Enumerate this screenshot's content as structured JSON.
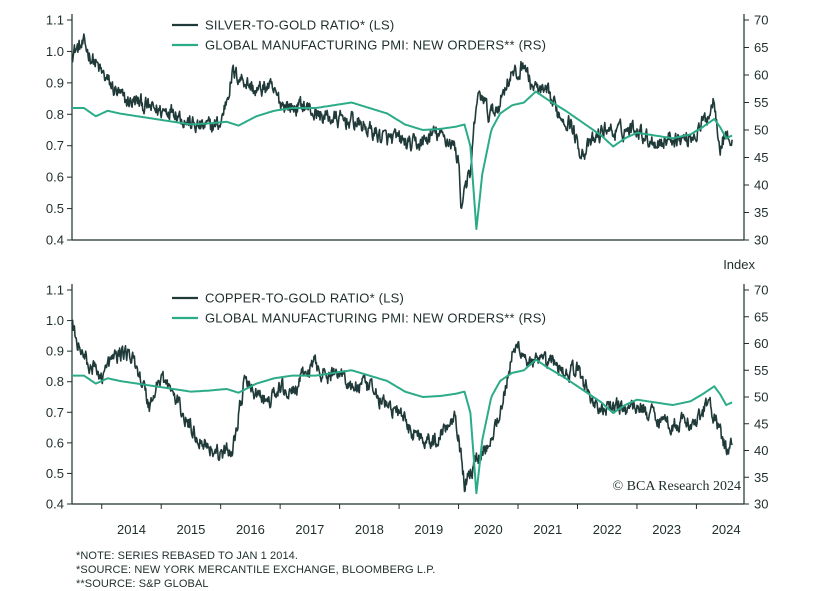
{
  "chart_data": [
    {
      "type": "line",
      "title": "",
      "legend": [
        {
          "name": "SILVER-TO-GOLD RATIO* (LS)",
          "color": "#1f3a39"
        },
        {
          "name": "GLOBAL MANUFACTURING PMI: NEW ORDERS** (RS)",
          "color": "#2bab87"
        }
      ],
      "left_axis": {
        "ylim": [
          0.4,
          1.1
        ],
        "ticks": [
          "1.1",
          "1.0",
          "0.9",
          "0.8",
          "0.7",
          "0.6",
          "0.5",
          "0.4"
        ]
      },
      "right_axis": {
        "ylim": [
          30,
          70
        ],
        "ticks": [
          "70",
          "65",
          "60",
          "55",
          "50",
          "45",
          "40",
          "35",
          "30"
        ],
        "label": "Index"
      },
      "xlim": [
        2013.5,
        2024.8
      ],
      "series": [
        {
          "name": "Silver-to-Gold Ratio",
          "axis": "left",
          "x": [
            2013.5,
            2013.7,
            2013.9,
            2014.0,
            2014.2,
            2014.4,
            2014.6,
            2014.8,
            2015.0,
            2015.2,
            2015.4,
            2015.6,
            2015.8,
            2016.0,
            2016.2,
            2016.4,
            2016.6,
            2016.8,
            2017.0,
            2017.2,
            2017.4,
            2017.6,
            2017.8,
            2018.0,
            2018.2,
            2018.4,
            2018.6,
            2018.8,
            2019.0,
            2019.2,
            2019.4,
            2019.6,
            2019.8,
            2019.9,
            2020.0,
            2020.05,
            2020.1,
            2020.2,
            2020.3,
            2020.4,
            2020.5,
            2020.6,
            2020.7,
            2020.8,
            2020.9,
            2021.0,
            2021.1,
            2021.2,
            2021.3,
            2021.5,
            2021.7,
            2021.9,
            2022.0,
            2022.1,
            2022.3,
            2022.5,
            2022.6,
            2022.8,
            2023.0,
            2023.2,
            2023.4,
            2023.6,
            2023.8,
            2024.0,
            2024.2,
            2024.3,
            2024.4,
            2024.5,
            2024.6
          ],
          "values": [
            1.0,
            1.02,
            0.96,
            0.93,
            0.88,
            0.84,
            0.84,
            0.82,
            0.81,
            0.82,
            0.78,
            0.76,
            0.76,
            0.77,
            0.93,
            0.91,
            0.87,
            0.89,
            0.84,
            0.82,
            0.83,
            0.8,
            0.79,
            0.78,
            0.78,
            0.76,
            0.74,
            0.72,
            0.72,
            0.7,
            0.71,
            0.74,
            0.72,
            0.71,
            0.65,
            0.5,
            0.58,
            0.6,
            0.84,
            0.86,
            0.8,
            0.81,
            0.84,
            0.9,
            0.93,
            0.92,
            0.97,
            0.9,
            0.88,
            0.86,
            0.8,
            0.77,
            0.7,
            0.68,
            0.72,
            0.76,
            0.74,
            0.75,
            0.76,
            0.72,
            0.71,
            0.73,
            0.72,
            0.74,
            0.8,
            0.85,
            0.7,
            0.74,
            0.7
          ]
        },
        {
          "name": "Global Manufacturing PMI: New Orders",
          "axis": "right",
          "x": [
            2013.5,
            2013.7,
            2013.9,
            2014.1,
            2014.3,
            2014.6,
            2014.9,
            2015.2,
            2015.5,
            2015.8,
            2016.1,
            2016.3,
            2016.6,
            2016.9,
            2017.2,
            2017.6,
            2017.9,
            2018.2,
            2018.5,
            2018.8,
            2019.1,
            2019.4,
            2019.7,
            2019.95,
            2020.1,
            2020.2,
            2020.3,
            2020.4,
            2020.55,
            2020.7,
            2020.9,
            2021.1,
            2021.3,
            2021.5,
            2021.8,
            2022.0,
            2022.2,
            2022.4,
            2022.6,
            2022.8,
            2023.0,
            2023.3,
            2023.6,
            2023.9,
            2024.1,
            2024.3,
            2024.4,
            2024.5,
            2024.6
          ],
          "values": [
            54.0,
            54.0,
            52.5,
            53.5,
            53.0,
            52.5,
            52.0,
            51.5,
            51.0,
            51.2,
            51.5,
            50.8,
            52.5,
            53.5,
            54.0,
            54.0,
            54.5,
            55.0,
            54.0,
            53.0,
            51.0,
            50.0,
            50.2,
            50.6,
            51.0,
            47.0,
            32.0,
            42.0,
            50.0,
            53.0,
            54.5,
            55.0,
            57.0,
            55.5,
            53.5,
            52.0,
            50.5,
            49.0,
            47.0,
            48.5,
            49.5,
            49.0,
            48.5,
            49.2,
            50.5,
            52.0,
            50.5,
            48.5,
            49.0
          ]
        }
      ]
    },
    {
      "type": "line",
      "title": "",
      "legend": [
        {
          "name": "COPPER-TO-GOLD RATIO* (LS)",
          "color": "#1f3a39"
        },
        {
          "name": "GLOBAL MANUFACTURING PMI: NEW ORDERS** (RS)",
          "color": "#2bab87"
        }
      ],
      "left_axis": {
        "ylim": [
          0.4,
          1.1
        ],
        "ticks": [
          "1.1",
          "1.0",
          "0.9",
          "0.8",
          "0.7",
          "0.6",
          "0.5",
          "0.4"
        ]
      },
      "right_axis": {
        "ylim": [
          30,
          70
        ],
        "ticks": [
          "70",
          "65",
          "60",
          "55",
          "50",
          "45",
          "40",
          "35",
          "30"
        ]
      },
      "xlim": [
        2013.5,
        2024.8
      ],
      "xticks": [
        "2014",
        "2015",
        "2016",
        "2017",
        "2018",
        "2019",
        "2020",
        "2021",
        "2022",
        "2023",
        "2024"
      ],
      "series": [
        {
          "name": "Copper-to-Gold Ratio",
          "axis": "left",
          "x": [
            2013.5,
            2013.6,
            2013.8,
            2014.0,
            2014.2,
            2014.4,
            2014.6,
            2014.8,
            2015.0,
            2015.2,
            2015.4,
            2015.6,
            2015.8,
            2016.0,
            2016.2,
            2016.4,
            2016.6,
            2016.8,
            2017.0,
            2017.2,
            2017.4,
            2017.6,
            2017.8,
            2018.0,
            2018.2,
            2018.4,
            2018.6,
            2018.8,
            2019.0,
            2019.2,
            2019.4,
            2019.6,
            2019.8,
            2019.95,
            2020.1,
            2020.2,
            2020.3,
            2020.4,
            2020.5,
            2020.7,
            2020.9,
            2021.0,
            2021.2,
            2021.4,
            2021.6,
            2021.8,
            2022.0,
            2022.2,
            2022.4,
            2022.6,
            2022.8,
            2023.0,
            2023.2,
            2023.4,
            2023.6,
            2023.8,
            2024.0,
            2024.2,
            2024.3,
            2024.4,
            2024.5,
            2024.6
          ],
          "values": [
            1.0,
            0.92,
            0.85,
            0.82,
            0.88,
            0.9,
            0.85,
            0.72,
            0.82,
            0.76,
            0.68,
            0.62,
            0.59,
            0.56,
            0.58,
            0.8,
            0.76,
            0.73,
            0.78,
            0.76,
            0.82,
            0.86,
            0.81,
            0.84,
            0.78,
            0.79,
            0.76,
            0.72,
            0.7,
            0.64,
            0.62,
            0.6,
            0.66,
            0.7,
            0.47,
            0.5,
            0.55,
            0.57,
            0.6,
            0.7,
            0.88,
            0.92,
            0.86,
            0.86,
            0.86,
            0.83,
            0.84,
            0.76,
            0.7,
            0.72,
            0.71,
            0.72,
            0.7,
            0.68,
            0.66,
            0.67,
            0.66,
            0.74,
            0.68,
            0.63,
            0.58,
            0.59
          ]
        },
        {
          "name": "Global Manufacturing PMI: New Orders",
          "axis": "right",
          "x": [
            2013.5,
            2013.7,
            2013.9,
            2014.1,
            2014.3,
            2014.6,
            2014.9,
            2015.2,
            2015.5,
            2015.8,
            2016.1,
            2016.3,
            2016.6,
            2016.9,
            2017.2,
            2017.6,
            2017.9,
            2018.2,
            2018.5,
            2018.8,
            2019.1,
            2019.4,
            2019.7,
            2019.95,
            2020.1,
            2020.2,
            2020.3,
            2020.4,
            2020.55,
            2020.7,
            2020.9,
            2021.1,
            2021.3,
            2021.5,
            2021.8,
            2022.0,
            2022.2,
            2022.4,
            2022.6,
            2022.8,
            2023.0,
            2023.3,
            2023.6,
            2023.9,
            2024.1,
            2024.3,
            2024.4,
            2024.5,
            2024.6
          ],
          "values": [
            54.0,
            54.0,
            52.5,
            53.5,
            53.0,
            52.5,
            52.0,
            51.5,
            51.0,
            51.2,
            51.5,
            50.8,
            52.5,
            53.5,
            54.0,
            54.0,
            54.5,
            55.0,
            54.0,
            53.0,
            51.0,
            50.0,
            50.2,
            50.6,
            51.0,
            47.0,
            32.0,
            42.0,
            50.0,
            53.0,
            54.5,
            55.0,
            57.0,
            55.5,
            53.5,
            52.0,
            50.5,
            49.0,
            47.0,
            48.5,
            49.5,
            49.0,
            48.5,
            49.2,
            50.5,
            52.0,
            50.5,
            48.5,
            49.0
          ]
        }
      ]
    }
  ],
  "watermark": "© BCA Research 2024",
  "notes": [
    "*NOTE: SERIES REBASED TO JAN 1 2014.",
    "*SOURCE: NEW YORK MERCANTILE EXCHANGE, BLOOMBERG L.P.",
    "**SOURCE: S&P GLOBAL"
  ]
}
